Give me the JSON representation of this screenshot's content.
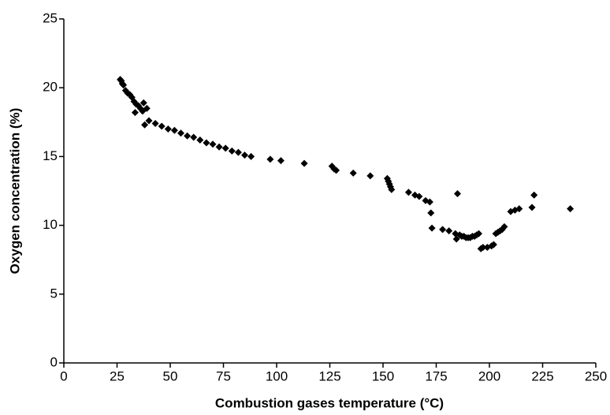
{
  "chart_data": {
    "type": "scatter",
    "x_label": "Combustion gases temperature (°C)",
    "y_label": "Oxygen concentration (%)",
    "color": "#000000",
    "marker": "diamond",
    "grid": false,
    "xlim": [
      0,
      250
    ],
    "xticks": [
      0,
      25,
      50,
      75,
      100,
      125,
      150,
      175,
      200,
      225,
      250
    ],
    "ylim": [
      0,
      25
    ],
    "yticks": [
      0,
      5,
      10,
      15,
      20,
      25
    ],
    "x": [
      26.5,
      27,
      27.5,
      28,
      29,
      30,
      31,
      32,
      33,
      34,
      35,
      33.5,
      36,
      37,
      37.5,
      38,
      39,
      40,
      43,
      46,
      49,
      52,
      55,
      58,
      61,
      64,
      67,
      70,
      73,
      76,
      79,
      82,
      85,
      88,
      97,
      102,
      113,
      126,
      127,
      128,
      136,
      144,
      152,
      152.5,
      153,
      153.5,
      154,
      162,
      165,
      167,
      170,
      172,
      172.5,
      173,
      178,
      181,
      184,
      185,
      184.5,
      186,
      187,
      188,
      189,
      190,
      191,
      192,
      193,
      194,
      195,
      196,
      197,
      199,
      201,
      202,
      203,
      204,
      205,
      206,
      207,
      210,
      212,
      214,
      220,
      221,
      238
    ],
    "y": [
      20.6,
      20.5,
      20.3,
      20.2,
      19.8,
      19.6,
      19.5,
      19.3,
      19.0,
      18.8,
      18.7,
      18.2,
      18.5,
      18.3,
      18.9,
      17.3,
      18.5,
      17.6,
      17.4,
      17.2,
      17.0,
      16.9,
      16.7,
      16.5,
      16.4,
      16.2,
      16.0,
      15.9,
      15.7,
      15.6,
      15.4,
      15.3,
      15.1,
      15.0,
      14.8,
      14.7,
      14.5,
      14.3,
      14.1,
      14.0,
      13.8,
      13.6,
      13.4,
      13.2,
      13.0,
      12.8,
      12.6,
      12.4,
      12.2,
      12.1,
      11.8,
      11.7,
      10.9,
      9.8,
      9.7,
      9.6,
      9.4,
      12.3,
      9.0,
      9.3,
      9.2,
      9.2,
      9.1,
      9.1,
      9.1,
      9.2,
      9.2,
      9.3,
      9.4,
      8.3,
      8.4,
      8.4,
      8.5,
      8.6,
      9.4,
      9.5,
      9.6,
      9.7,
      9.9,
      11.0,
      11.1,
      11.2,
      11.3,
      12.2,
      11.2
    ]
  }
}
